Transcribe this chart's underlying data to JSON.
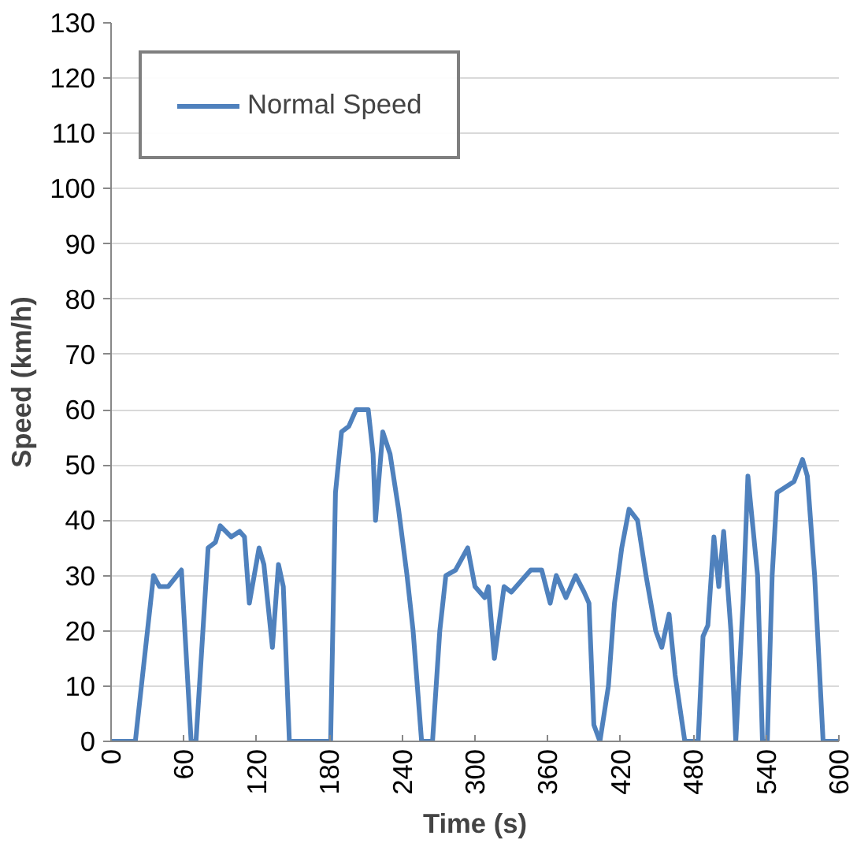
{
  "chart_data": {
    "type": "line",
    "xlabel": "Time (s)",
    "ylabel": "Speed (km/h)",
    "xlim": [
      0,
      600
    ],
    "xticks": [
      0,
      60,
      120,
      180,
      240,
      300,
      360,
      420,
      480,
      540,
      600
    ],
    "ylim": [
      0,
      130
    ],
    "yticks": [
      0,
      10,
      20,
      30,
      40,
      50,
      60,
      70,
      80,
      90,
      100,
      110,
      120,
      130
    ],
    "grid": "y",
    "legend": "top left",
    "series": [
      {
        "name": "Normal Speed",
        "color": "#4f81bd",
        "x": [
          0,
          20,
          35,
          40,
          47,
          58,
          66,
          70,
          80,
          86,
          90,
          99,
          106,
          110,
          114,
          122,
          126,
          133,
          138,
          142,
          147,
          181,
          185,
          190,
          196,
          202,
          212,
          216,
          218,
          224,
          230,
          237,
          244,
          249,
          256,
          265,
          271,
          276,
          284,
          294,
          300,
          308,
          311,
          316,
          324,
          330,
          338,
          346,
          355,
          362,
          367,
          375,
          383,
          390,
          394,
          398,
          403,
          410,
          415,
          421,
          427,
          434,
          441,
          449,
          454,
          460,
          465,
          473,
          484,
          488,
          492,
          497,
          501,
          505,
          511,
          515,
          521,
          525,
          533,
          537,
          541,
          545,
          549,
          563,
          570,
          574,
          580,
          587,
          600
        ],
        "values": [
          0,
          0,
          30,
          28,
          28,
          31,
          0,
          0,
          35,
          36,
          39,
          37,
          38,
          37,
          25,
          35,
          32,
          17,
          32,
          28,
          0,
          0,
          45,
          56,
          57,
          60,
          60,
          52,
          40,
          56,
          52,
          42,
          30,
          20,
          0,
          0,
          20,
          30,
          31,
          35,
          28,
          26,
          28,
          15,
          28,
          27,
          29,
          31,
          31,
          25,
          30,
          26,
          30,
          27,
          25,
          3,
          0,
          10,
          25,
          35,
          42,
          40,
          30,
          20,
          17,
          23,
          12,
          0,
          0,
          19,
          21,
          37,
          28,
          38,
          20,
          0,
          25,
          48,
          30,
          0,
          0,
          30,
          45,
          47,
          51,
          48,
          30,
          0,
          0
        ]
      }
    ]
  }
}
